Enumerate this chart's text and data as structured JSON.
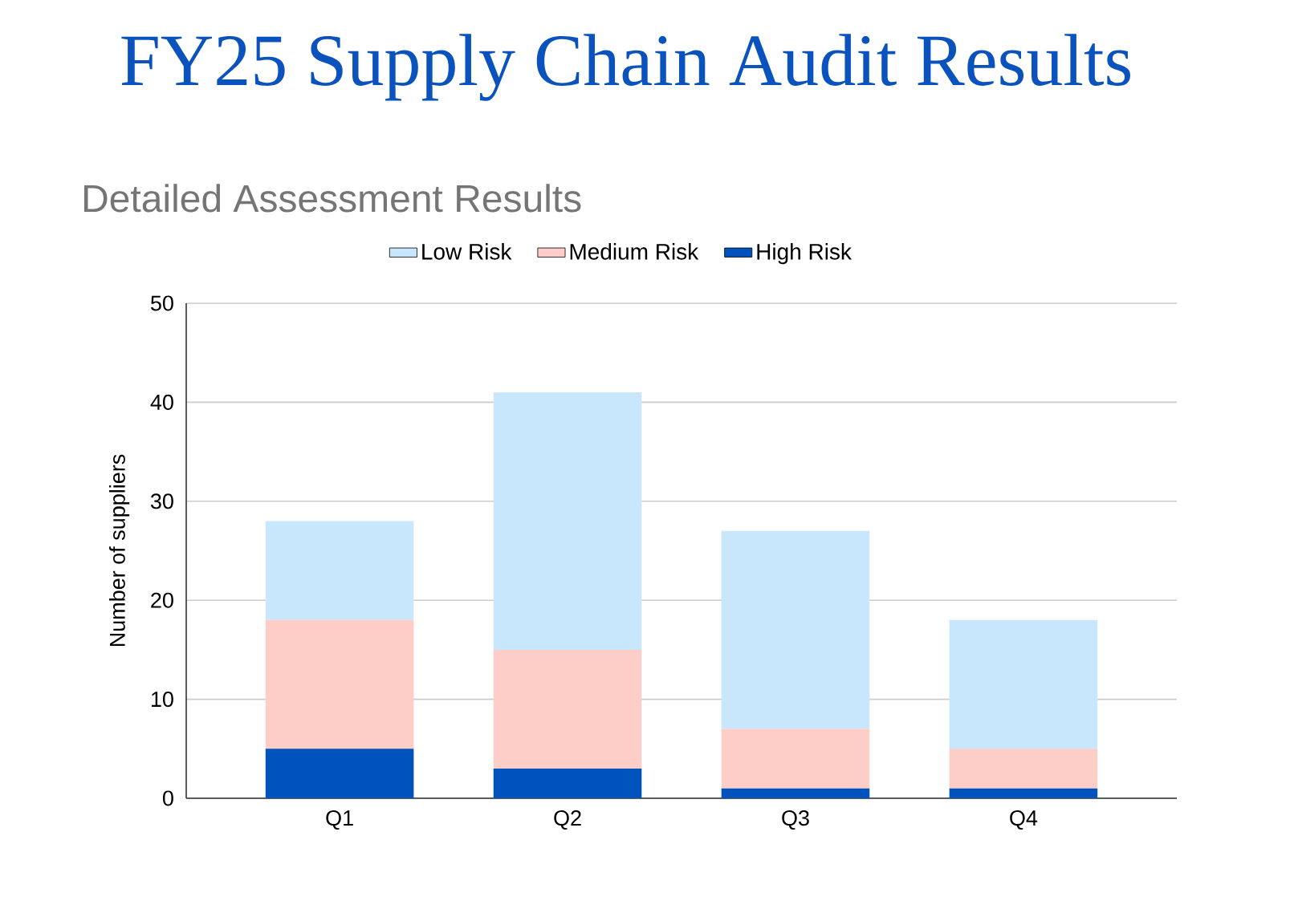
{
  "chart_data": {
    "type": "bar",
    "title": "FY25 Supply Chain Audit Results",
    "subtitle": "Detailed Assessment Results",
    "ylabel": "Number of suppliers",
    "categories": [
      "Q1",
      "Q2",
      "Q3",
      "Q4"
    ],
    "stacked": true,
    "series": [
      {
        "name": "High Risk",
        "color": "#0052bd",
        "values": [
          5,
          3,
          1,
          1
        ]
      },
      {
        "name": "Medium Risk",
        "color": "#fdcdc8",
        "values": [
          13,
          12,
          6,
          4
        ]
      },
      {
        "name": "Low Risk",
        "color": "#c9e7fc",
        "values": [
          10,
          26,
          20,
          13
        ]
      }
    ],
    "ylim": [
      0,
      50
    ],
    "yticks": [
      0,
      10,
      20,
      30,
      40,
      50
    ],
    "grid": "y",
    "legend": "top"
  }
}
